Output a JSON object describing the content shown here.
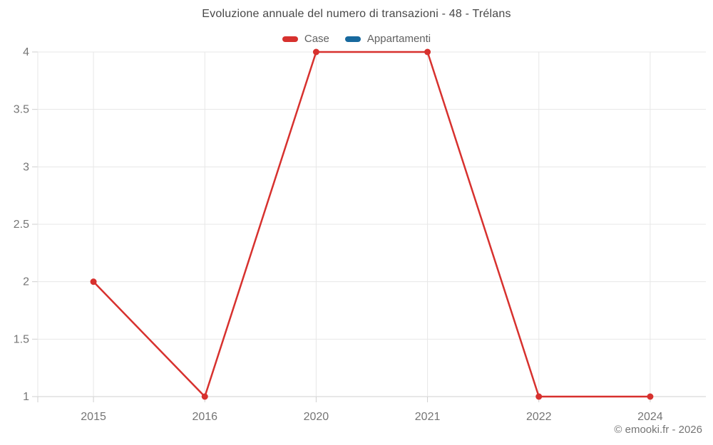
{
  "title": "Evoluzione annuale del numero di transazioni - 48 - Trélans",
  "legend": {
    "items": [
      {
        "label": "Case",
        "color": "#d7312e"
      },
      {
        "label": "Appartamenti",
        "color": "#17699e"
      }
    ]
  },
  "footer": {
    "credit": "© emooki.fr - 2026"
  },
  "colors": {
    "series_case": "#d7312e",
    "series_appartamenti": "#17699e",
    "gridline": "#e7e7e7",
    "axis_line": "#cfcfcf",
    "tick": "#cfcfcf",
    "axis_label": "#757575",
    "title_text": "#474747",
    "background": "#ffffff"
  },
  "chart_data": {
    "type": "line",
    "title": "Evoluzione annuale del numero di transazioni - 48 - Trélans",
    "categories": [
      "2015",
      "2016",
      "2020",
      "2021",
      "2022",
      "2024"
    ],
    "series": [
      {
        "name": "Case",
        "color": "#d7312e",
        "values": [
          2,
          1,
          4,
          4,
          1,
          1
        ]
      },
      {
        "name": "Appartamenti",
        "color": "#17699e",
        "values": []
      }
    ],
    "xlabel": "",
    "ylabel": "",
    "ylim": [
      1,
      4
    ],
    "yticks": [
      1,
      1.5,
      2,
      2.5,
      3,
      3.5,
      4
    ],
    "grid": "both",
    "legend_position": "top",
    "marker": "circle",
    "annotations": [
      "© emooki.fr - 2026"
    ]
  }
}
